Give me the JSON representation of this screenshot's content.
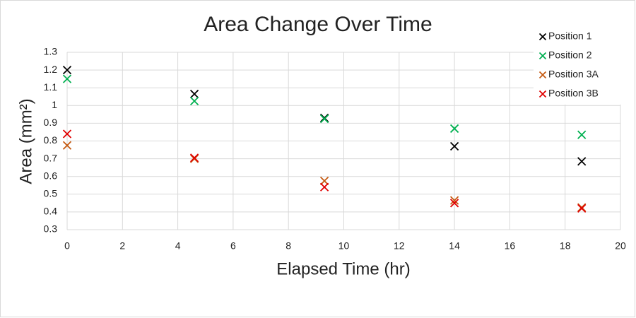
{
  "chart_data": {
    "type": "scatter",
    "title": "Area Change Over Time",
    "x_label": "Elapsed Time (hr)",
    "y_label": "Area (mm²)",
    "x": [
      0,
      4.6,
      9.3,
      14,
      18.6
    ],
    "series": [
      {
        "name": "Position 1",
        "color": "#000000",
        "values": [
          1.2,
          1.065,
          0.93,
          0.77,
          0.685
        ]
      },
      {
        "name": "Position 2",
        "color": "#00b050",
        "values": [
          1.15,
          1.025,
          0.925,
          0.87,
          0.835
        ]
      },
      {
        "name": "Position 3A",
        "color": "#c55a11",
        "values": [
          0.775,
          0.7,
          0.575,
          0.465,
          0.425
        ]
      },
      {
        "name": "Position 3B",
        "color": "#e00000",
        "values": [
          0.84,
          0.705,
          0.54,
          0.45,
          0.42
        ]
      }
    ],
    "xlim": [
      0,
      20
    ],
    "xticks": [
      0,
      2,
      4,
      6,
      8,
      10,
      12,
      14,
      16,
      18,
      20
    ],
    "ylim": [
      0.3,
      1.3
    ],
    "yticks": [
      0.3,
      0.4,
      0.5,
      0.6,
      0.7,
      0.8,
      0.9,
      1,
      1.1,
      1.2,
      1.3
    ],
    "grid": true,
    "legend": "top-right"
  }
}
